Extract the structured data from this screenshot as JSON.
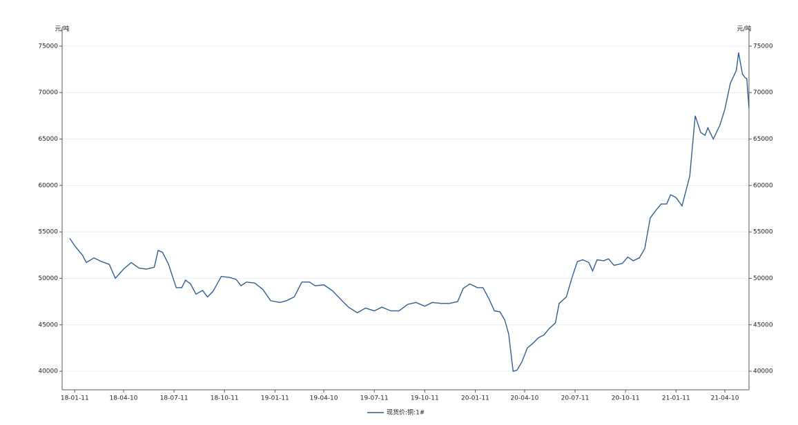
{
  "chart_data": {
    "type": "line",
    "y_unit_left": "元/吨",
    "y_unit_right": "元/吨",
    "x": [
      "18-01-02",
      "18-01-11",
      "18-01-25",
      "18-02-01",
      "18-02-15",
      "18-03-01",
      "18-03-15",
      "18-03-26",
      "18-04-10",
      "18-04-24",
      "18-05-08",
      "18-05-22",
      "18-06-05",
      "18-06-12",
      "18-06-20",
      "18-07-01",
      "18-07-15",
      "18-07-25",
      "18-08-01",
      "18-08-10",
      "18-08-20",
      "18-09-01",
      "18-09-10",
      "18-09-20",
      "18-10-05",
      "18-10-20",
      "18-11-01",
      "18-11-10",
      "18-11-20",
      "18-12-05",
      "18-12-20",
      "19-01-03",
      "19-01-20",
      "19-02-01",
      "19-02-15",
      "19-03-01",
      "19-03-15",
      "19-03-25",
      "19-04-10",
      "19-04-25",
      "19-05-10",
      "19-05-25",
      "19-06-10",
      "19-06-25",
      "19-07-11",
      "19-07-25",
      "19-08-10",
      "19-08-25",
      "19-09-10",
      "19-09-25",
      "19-10-11",
      "19-10-25",
      "19-11-10",
      "19-11-25",
      "19-12-10",
      "19-12-20",
      "20-01-01",
      "20-01-15",
      "20-01-25",
      "20-02-05",
      "20-02-15",
      "20-02-25",
      "20-03-05",
      "20-03-12",
      "20-03-20",
      "20-03-27",
      "20-04-05",
      "20-04-15",
      "20-04-25",
      "20-05-05",
      "20-05-15",
      "20-05-25",
      "20-06-05",
      "20-06-12",
      "20-06-25",
      "20-07-05",
      "20-07-15",
      "20-07-25",
      "20-08-05",
      "20-08-12",
      "20-08-20",
      "20-09-01",
      "20-09-10",
      "20-09-20",
      "20-10-05",
      "20-10-15",
      "20-10-25",
      "20-11-05",
      "20-11-15",
      "20-11-25",
      "20-12-05",
      "20-12-15",
      "20-12-25",
      "21-01-01",
      "21-01-11",
      "21-01-22",
      "21-02-05",
      "21-02-15",
      "21-02-25",
      "21-03-05",
      "21-03-10",
      "21-03-20",
      "21-04-01",
      "21-04-10",
      "21-04-20",
      "21-05-01",
      "21-05-05",
      "21-05-12",
      "21-05-17",
      "21-05-20",
      "21-05-24"
    ],
    "series": [
      {
        "name": "现货价:铜:1#",
        "color": "#2f5d8f",
        "values": [
          54300,
          53500,
          52500,
          51700,
          52200,
          51800,
          51500,
          50000,
          51000,
          51700,
          51100,
          51000,
          51200,
          53000,
          52800,
          51500,
          49000,
          49000,
          49800,
          49400,
          48300,
          48700,
          48000,
          48600,
          50200,
          50100,
          49900,
          49200,
          49600,
          49500,
          48800,
          47600,
          47400,
          47600,
          48000,
          49600,
          49600,
          49200,
          49300,
          48700,
          47800,
          46900,
          46300,
          46800,
          46500,
          46900,
          46500,
          46500,
          47200,
          47400,
          47000,
          47400,
          47300,
          47300,
          47500,
          48900,
          49400,
          49000,
          49000,
          47800,
          46500,
          46400,
          45500,
          44000,
          40000,
          40100,
          41000,
          42500,
          43000,
          43600,
          43900,
          44600,
          45200,
          47300,
          48000,
          50000,
          51800,
          52000,
          51700,
          50800,
          52000,
          51900,
          52100,
          51400,
          51600,
          52300,
          51900,
          52200,
          53200,
          56500,
          57300,
          58000,
          58000,
          59000,
          58700,
          57800,
          61000,
          67500,
          65700,
          65400,
          66200,
          65000,
          66500,
          68200,
          71000,
          72400,
          74300,
          72000,
          71600,
          71500,
          68300
        ]
      }
    ],
    "xlim": [
      "17-12-19",
      "21-05-24"
    ],
    "xticks": [
      "18-01-11",
      "18-04-10",
      "18-07-11",
      "18-10-11",
      "19-01-11",
      "19-04-10",
      "19-07-11",
      "19-10-11",
      "20-01-11",
      "20-04-10",
      "20-07-11",
      "20-10-11",
      "21-01-11",
      "21-04-10"
    ],
    "ylim": [
      38000,
      76400
    ],
    "yticks": [
      40000,
      45000,
      50000,
      55000,
      60000,
      65000,
      70000,
      75000
    ],
    "grid": true
  }
}
